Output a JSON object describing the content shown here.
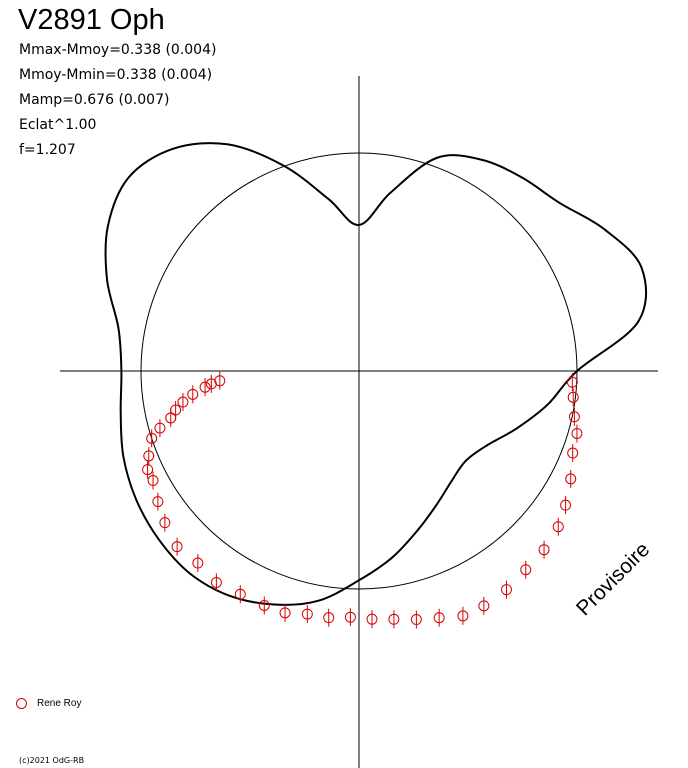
{
  "title": "V2891 Oph",
  "stats": [
    "Mmax-Mmoy=0.338 (0.004)",
    "Mmoy-Mmin=0.338 (0.004)",
    "Mamp=0.676 (0.007)",
    "Eclat^1.00",
    "f=1.207"
  ],
  "legend": {
    "label": "Rene Roy",
    "marker_color": "#d40000"
  },
  "watermark": "Provisoire",
  "copyright": "(c)2021 OdG-RB",
  "colors": {
    "curve": "#000000",
    "points": "#d40000",
    "axes": "#000000"
  },
  "chart_data": {
    "type": "scatter",
    "projection": "polar light curve (phase as angle, brightness as radius)",
    "radius_scale": "Eclat^1.00",
    "reference_circle_radius": 1.0,
    "fit_curve": {
      "points_polar_deg": [
        [
          0,
          1.0
        ],
        [
          10,
          1.3
        ],
        [
          20,
          1.38
        ],
        [
          30,
          1.3
        ],
        [
          40,
          1.2
        ],
        [
          50,
          1.16
        ],
        [
          60,
          1.12
        ],
        [
          70,
          1.04
        ],
        [
          80,
          0.83
        ],
        [
          90,
          0.67
        ],
        [
          100,
          0.8
        ],
        [
          110,
          1.0
        ],
        [
          120,
          1.2
        ],
        [
          130,
          1.33
        ],
        [
          140,
          1.38
        ],
        [
          150,
          1.33
        ],
        [
          160,
          1.23
        ],
        [
          170,
          1.12
        ],
        [
          180,
          1.09
        ],
        [
          190,
          1.11
        ],
        [
          200,
          1.15
        ],
        [
          210,
          1.18
        ],
        [
          220,
          1.2
        ],
        [
          230,
          1.21
        ],
        [
          240,
          1.19
        ],
        [
          250,
          1.14
        ],
        [
          260,
          1.07
        ],
        [
          270,
          0.96
        ],
        [
          280,
          0.87
        ],
        [
          290,
          0.78
        ],
        [
          300,
          0.71
        ],
        [
          310,
          0.66
        ],
        [
          320,
          0.64
        ],
        [
          330,
          0.68
        ],
        [
          340,
          0.77
        ],
        [
          350,
          0.88
        ],
        [
          360,
          1.0
        ]
      ]
    },
    "observations": [
      {
        "name": "Rene Roy",
        "points": [
          [
            -3,
            0.98
          ],
          [
            -7,
            0.99
          ],
          [
            -12,
            1.01
          ],
          [
            -16,
            1.04
          ],
          [
            -21,
            1.05
          ],
          [
            -27,
            1.09
          ],
          [
            -33,
            1.13
          ],
          [
            -38,
            1.16
          ],
          [
            -44,
            1.18
          ],
          [
            -50,
            1.19
          ],
          [
            -56,
            1.21
          ],
          [
            -62,
            1.22
          ],
          [
            -67,
            1.22
          ],
          [
            -72,
            1.19
          ],
          [
            -77,
            1.17
          ],
          [
            -82,
            1.15
          ],
          [
            -87,
            1.14
          ],
          [
            -92,
            1.13
          ],
          [
            -97,
            1.14
          ],
          [
            -102,
            1.14
          ],
          [
            -107,
            1.16
          ],
          [
            -112,
            1.16
          ],
          [
            -118,
            1.16
          ],
          [
            -124,
            1.17
          ],
          [
            -130,
            1.15
          ],
          [
            -136,
            1.16
          ],
          [
            -142,
            1.13
          ],
          [
            -147,
            1.1
          ],
          [
            -152,
            1.07
          ],
          [
            -155,
            1.07
          ],
          [
            -158,
            1.04
          ],
          [
            -162,
            1.0
          ],
          [
            -164,
            0.95
          ],
          [
            -166,
            0.89
          ],
          [
            -168,
            0.86
          ],
          [
            -170,
            0.82
          ],
          [
            -172,
            0.77
          ],
          [
            -174,
            0.71
          ],
          [
            -175,
            0.68
          ],
          [
            -176,
            0.64
          ]
        ]
      }
    ]
  }
}
